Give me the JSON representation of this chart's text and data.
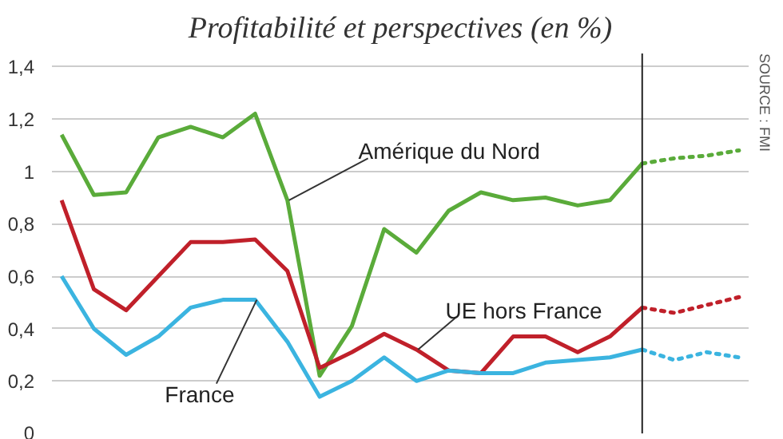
{
  "chart_data": {
    "type": "line",
    "title": "Profitabilité et perspectives (en %)",
    "categories": [
      null,
      null,
      null,
      null,
      null,
      null,
      null,
      null,
      null,
      null,
      null,
      null,
      null,
      null,
      null,
      null,
      null,
      null,
      null,
      null,
      null,
      null
    ],
    "series": [
      {
        "name": "Amérique du Nord",
        "color": "#5aab3a",
        "line_style": "solid",
        "values": [
          1.14,
          0.91,
          0.92,
          1.13,
          1.17,
          1.13,
          1.22,
          0.89,
          0.22,
          0.41,
          0.78,
          0.69,
          0.85,
          0.92,
          0.89,
          0.9,
          0.87,
          0.89,
          1.03,
          null,
          null,
          null
        ]
      },
      {
        "color": "#5aab3a",
        "line_style": "dotted",
        "values": [
          null,
          null,
          null,
          null,
          null,
          null,
          null,
          null,
          null,
          null,
          null,
          null,
          null,
          null,
          null,
          null,
          null,
          null,
          1.03,
          1.05,
          1.06,
          1.08
        ]
      },
      {
        "name": "UE hors France",
        "color": "#c0202a",
        "line_style": "solid",
        "values": [
          0.89,
          0.55,
          0.47,
          0.6,
          0.73,
          0.73,
          0.74,
          0.62,
          0.25,
          0.31,
          0.38,
          0.32,
          0.24,
          0.23,
          0.37,
          0.37,
          0.31,
          0.37,
          0.48,
          null,
          null,
          null
        ]
      },
      {
        "color": "#c0202a",
        "line_style": "dotted",
        "values": [
          null,
          null,
          null,
          null,
          null,
          null,
          null,
          null,
          null,
          null,
          null,
          null,
          null,
          null,
          null,
          null,
          null,
          null,
          0.48,
          0.46,
          0.49,
          0.52
        ]
      },
      {
        "name": "France",
        "color": "#3bb4e0",
        "line_style": "solid",
        "values": [
          0.6,
          0.4,
          0.3,
          0.37,
          0.48,
          0.51,
          0.51,
          0.35,
          0.14,
          0.2,
          0.29,
          0.2,
          0.24,
          0.23,
          0.23,
          0.27,
          0.28,
          0.29,
          0.32,
          null,
          null,
          null
        ]
      },
      {
        "color": "#3bb4e0",
        "line_style": "dotted",
        "values": [
          null,
          null,
          null,
          null,
          null,
          null,
          null,
          null,
          null,
          null,
          null,
          null,
          null,
          null,
          null,
          null,
          null,
          null,
          0.32,
          0.28,
          0.31,
          0.29
        ]
      }
    ],
    "ylim": [
      0,
      1.45
    ],
    "yticks": [
      0,
      {
        "value": 0.2,
        "label": "0,2"
      },
      {
        "value": 0.4,
        "label": "0,4"
      },
      {
        "value": 0.6,
        "label": "0,6"
      },
      {
        "value": 0.8,
        "label": "0,8"
      },
      1,
      {
        "value": 1.2,
        "label": "1,2"
      },
      {
        "value": 1.4,
        "label": "1,4"
      }
    ],
    "tick_labels": "y",
    "grid": "y",
    "annotations": [
      "SOURCE : FMI"
    ]
  }
}
